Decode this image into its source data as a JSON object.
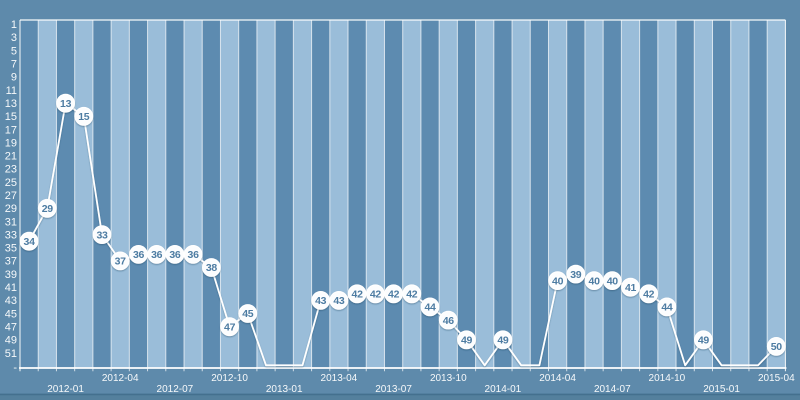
{
  "chart_data": {
    "type": "line",
    "title": "",
    "description": "Monthly rank history line chart; lower rank number is higher on the inverted y-axis; months with no rank drop to the chart baseline",
    "x_months": [
      "2011-11",
      "2011-12",
      "2012-01",
      "2012-02",
      "2012-03",
      "2012-04",
      "2012-05",
      "2012-06",
      "2012-07",
      "2012-08",
      "2012-09",
      "2012-10",
      "2012-11",
      "2012-12",
      "2013-01",
      "2013-02",
      "2013-03",
      "2013-04",
      "2013-05",
      "2013-06",
      "2013-07",
      "2013-08",
      "2013-09",
      "2013-10",
      "2013-11",
      "2013-12",
      "2014-01",
      "2014-02",
      "2014-03",
      "2014-04",
      "2014-05",
      "2014-06",
      "2014-07",
      "2014-08",
      "2014-09",
      "2014-10",
      "2014-11",
      "2014-12",
      "2015-01",
      "2015-02",
      "2015-03",
      "2015-04"
    ],
    "values": [
      34,
      29,
      13,
      15,
      33,
      37,
      36,
      36,
      36,
      36,
      38,
      47,
      45,
      null,
      null,
      null,
      43,
      43,
      42,
      42,
      42,
      42,
      44,
      46,
      49,
      null,
      49,
      null,
      null,
      40,
      39,
      40,
      40,
      41,
      42,
      44,
      null,
      49,
      null,
      null,
      null,
      50
    ],
    "y_ticks": [
      1,
      3,
      5,
      7,
      9,
      11,
      13,
      15,
      17,
      19,
      21,
      23,
      25,
      27,
      29,
      31,
      33,
      35,
      37,
      39,
      41,
      43,
      45,
      47,
      49,
      51
    ],
    "y_axis_bottom_label": "-",
    "y_axis": {
      "min": 1,
      "max": 51,
      "inverted": true
    },
    "x_tick_labels": [
      {
        "label": "2012-01",
        "row": "lower"
      },
      {
        "label": "2012-04",
        "row": "upper"
      },
      {
        "label": "2012-07",
        "row": "lower"
      },
      {
        "label": "2012-10",
        "row": "upper"
      },
      {
        "label": "2013-01",
        "row": "lower"
      },
      {
        "label": "2013-04",
        "row": "upper"
      },
      {
        "label": "2013-07",
        "row": "lower"
      },
      {
        "label": "2013-10",
        "row": "upper"
      },
      {
        "label": "2014-01",
        "row": "lower"
      },
      {
        "label": "2014-04",
        "row": "upper"
      },
      {
        "label": "2014-07",
        "row": "lower"
      },
      {
        "label": "2014-10",
        "row": "upper"
      },
      {
        "label": "2015-01",
        "row": "lower"
      },
      {
        "label": "2015-04",
        "row": "upper"
      }
    ],
    "grid": "vertical-stripes-per-month",
    "legend": "none",
    "colors": {
      "background": "#5e8aab",
      "stripe_dark": "#5d8bb0",
      "stripe_light": "#9abdd9",
      "separator": "#ffffff",
      "plot_border": "#ffffff",
      "line": "#ffffff",
      "marker_fill": "#fcfdfe",
      "marker_border": "#ffffff",
      "marker_text": "#4e7ca2",
      "axis_text": "#ffffff",
      "footer_edge": "#44708e",
      "footer_fill": "#54809d"
    }
  }
}
